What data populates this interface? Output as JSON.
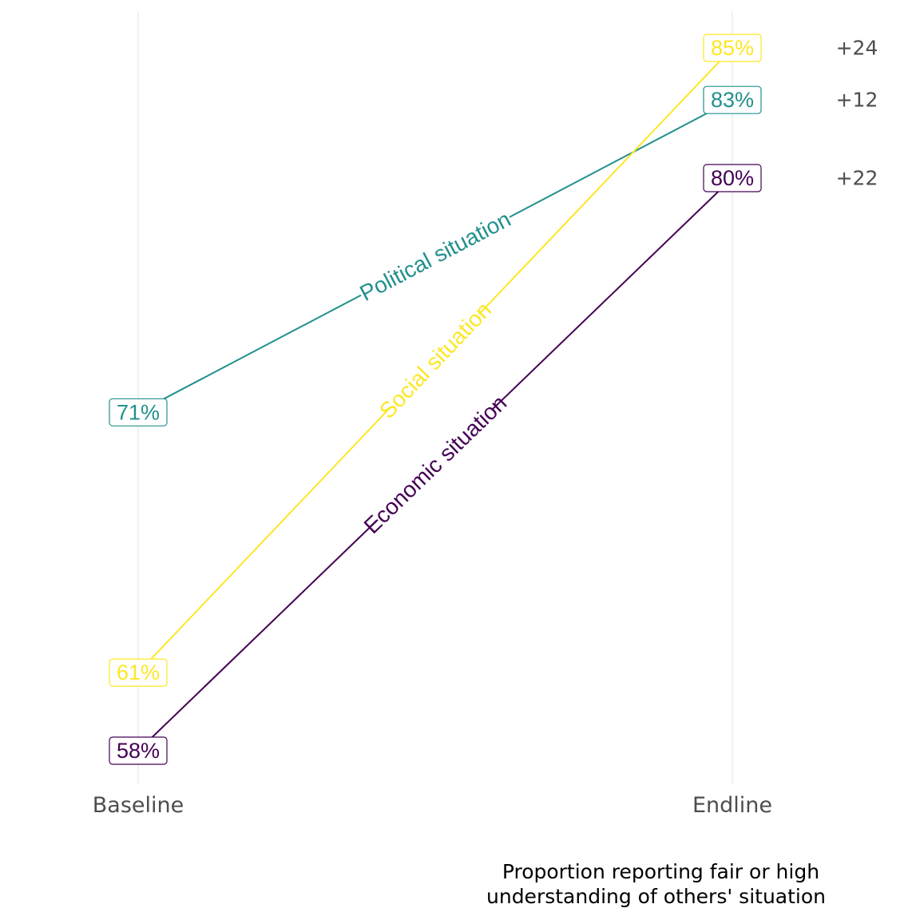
{
  "chart_data": {
    "type": "line",
    "x": [
      "Baseline",
      "Endline"
    ],
    "ylim": [
      56,
      87
    ],
    "grid": {
      "major_x": true,
      "major_y": false
    },
    "series": [
      {
        "name": "Political situation",
        "values": [
          71,
          83
        ],
        "value_labels": [
          "71%",
          "83%"
        ],
        "difference": "+12",
        "color": "#21908C"
      },
      {
        "name": "Social situation",
        "values": [
          61,
          85
        ],
        "value_labels": [
          "61%",
          "85%"
        ],
        "difference": "+24",
        "color": "#FDE725"
      },
      {
        "name": "Economic situation",
        "values": [
          58,
          80
        ],
        "value_labels": [
          "58%",
          "80%"
        ],
        "difference": "+22",
        "color": "#440154"
      }
    ],
    "caption": [
      "Proportion reporting fair or high",
      "understanding of others' situation"
    ],
    "colors": {
      "grid": "#ebebeb",
      "axis_text": "#4d4d4d",
      "caption_text": "#000000",
      "background": "#ffffff"
    }
  }
}
